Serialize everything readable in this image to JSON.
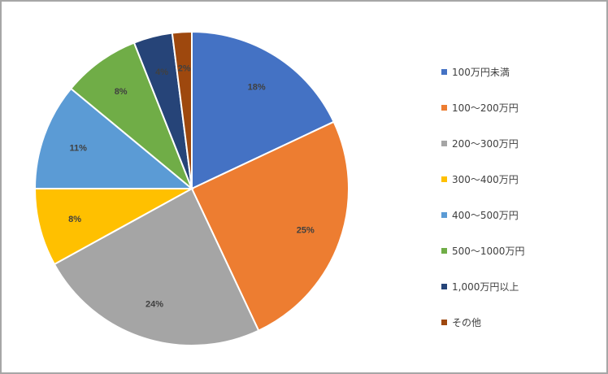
{
  "chart_data": {
    "type": "pie",
    "categories": [
      "100万円未満",
      "100～200万円",
      "200～300万円",
      "300～400万円",
      "400～500万円",
      "500～1000万円",
      "1,000万円以上",
      "その他"
    ],
    "values": [
      18,
      25,
      24,
      8,
      11,
      8,
      4,
      2
    ],
    "labels": [
      "18%",
      "25%",
      "24%",
      "8%",
      "11%",
      "8%",
      "4%",
      "2%"
    ],
    "colors": [
      "#4472c4",
      "#ed7d31",
      "#a5a5a5",
      "#ffc000",
      "#5b9bd5",
      "#70ad47",
      "#264478",
      "#9e480e"
    ],
    "legend_position": "right"
  }
}
